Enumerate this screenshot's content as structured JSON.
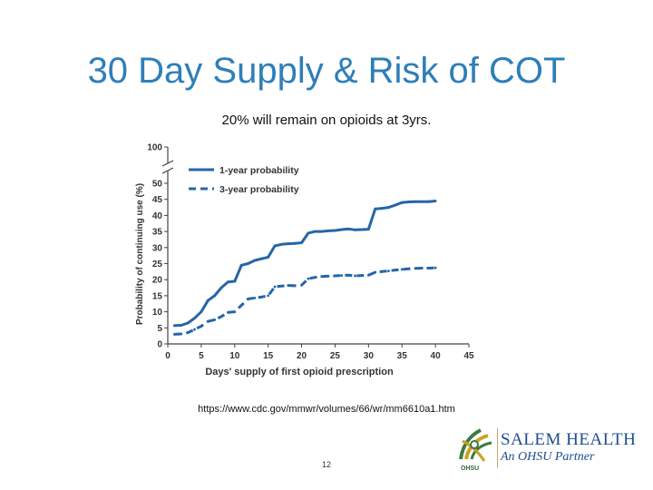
{
  "slide": {
    "title": "30 Day Supply & Risk of COT",
    "subtitle": "20% will remain on opioids at 3yrs.",
    "source": "https://www.cdc.gov/mmwr/volumes/66/wr/mm6610a1.htm",
    "page_number": "12"
  },
  "logo": {
    "name": "SALEM HEALTH",
    "tagline": "An OHSU Partner",
    "sub": "OHSU",
    "colors": {
      "green": "#3c7a3f",
      "gold": "#c9a227",
      "navy": "#1e4d8c"
    }
  },
  "chart_data": {
    "type": "line",
    "xlabel": "Days' supply of first opioid prescription",
    "ylabel": "Probability of continuing use (%)",
    "xlim": [
      0,
      45
    ],
    "ylim": [
      0,
      50
    ],
    "y_break_label": "100",
    "x_ticks": [
      "0",
      "5",
      "10",
      "15",
      "20",
      "25",
      "30",
      "35",
      "40",
      "45"
    ],
    "y_ticks": [
      "0",
      "5",
      "10",
      "15",
      "20",
      "25",
      "30",
      "35",
      "40",
      "45",
      "50"
    ],
    "legend_position": "top-left",
    "line_color": "#2566a8",
    "series": [
      {
        "name": "1-year probability",
        "style": "solid",
        "points": [
          [
            1,
            5.7
          ],
          [
            2,
            5.8
          ],
          [
            3,
            6.5
          ],
          [
            4,
            8
          ],
          [
            5,
            10
          ],
          [
            6,
            13.5
          ],
          [
            7,
            15
          ],
          [
            8,
            17.5
          ],
          [
            9,
            19.3
          ],
          [
            10,
            19.5
          ],
          [
            11,
            24.5
          ],
          [
            12,
            25
          ],
          [
            13,
            26
          ],
          [
            14,
            26.5
          ],
          [
            15,
            27
          ],
          [
            16,
            30.5
          ],
          [
            17,
            31
          ],
          [
            18,
            31.2
          ],
          [
            19,
            31.3
          ],
          [
            20,
            31.5
          ],
          [
            21,
            34.5
          ],
          [
            22,
            35
          ],
          [
            23,
            35
          ],
          [
            24,
            35.2
          ],
          [
            25,
            35.3
          ],
          [
            26,
            35.6
          ],
          [
            27,
            35.8
          ],
          [
            28,
            35.5
          ],
          [
            29,
            35.6
          ],
          [
            30,
            35.7
          ],
          [
            31,
            42
          ],
          [
            32,
            42.2
          ],
          [
            33,
            42.5
          ],
          [
            34,
            43.2
          ],
          [
            35,
            44
          ],
          [
            36,
            44.2
          ],
          [
            37,
            44.3
          ],
          [
            38,
            44.3
          ],
          [
            39,
            44.3
          ],
          [
            40,
            44.5
          ]
        ]
      },
      {
        "name": "3-year probability",
        "style": "dashed",
        "points": [
          [
            1,
            3
          ],
          [
            2,
            3.1
          ],
          [
            3,
            3.5
          ],
          [
            4,
            4.5
          ],
          [
            5,
            5.5
          ],
          [
            6,
            7
          ],
          [
            7,
            7.5
          ],
          [
            8,
            8.5
          ],
          [
            9,
            9.8
          ],
          [
            10,
            10
          ],
          [
            11,
            12
          ],
          [
            12,
            14
          ],
          [
            13,
            14.3
          ],
          [
            14,
            14.6
          ],
          [
            15,
            15
          ],
          [
            16,
            17.8
          ],
          [
            17,
            18
          ],
          [
            18,
            18.2
          ],
          [
            19,
            18.1
          ],
          [
            20,
            18.3
          ],
          [
            21,
            20.3
          ],
          [
            22,
            20.7
          ],
          [
            23,
            21
          ],
          [
            24,
            21.1
          ],
          [
            25,
            21.2
          ],
          [
            26,
            21.3
          ],
          [
            27,
            21.4
          ],
          [
            28,
            21.2
          ],
          [
            29,
            21.3
          ],
          [
            30,
            21.4
          ],
          [
            31,
            22.3
          ],
          [
            32,
            22.5
          ],
          [
            33,
            22.7
          ],
          [
            34,
            23
          ],
          [
            35,
            23.2
          ],
          [
            36,
            23.4
          ],
          [
            37,
            23.5
          ],
          [
            38,
            23.6
          ],
          [
            39,
            23.6
          ],
          [
            40,
            23.7
          ]
        ]
      }
    ]
  }
}
